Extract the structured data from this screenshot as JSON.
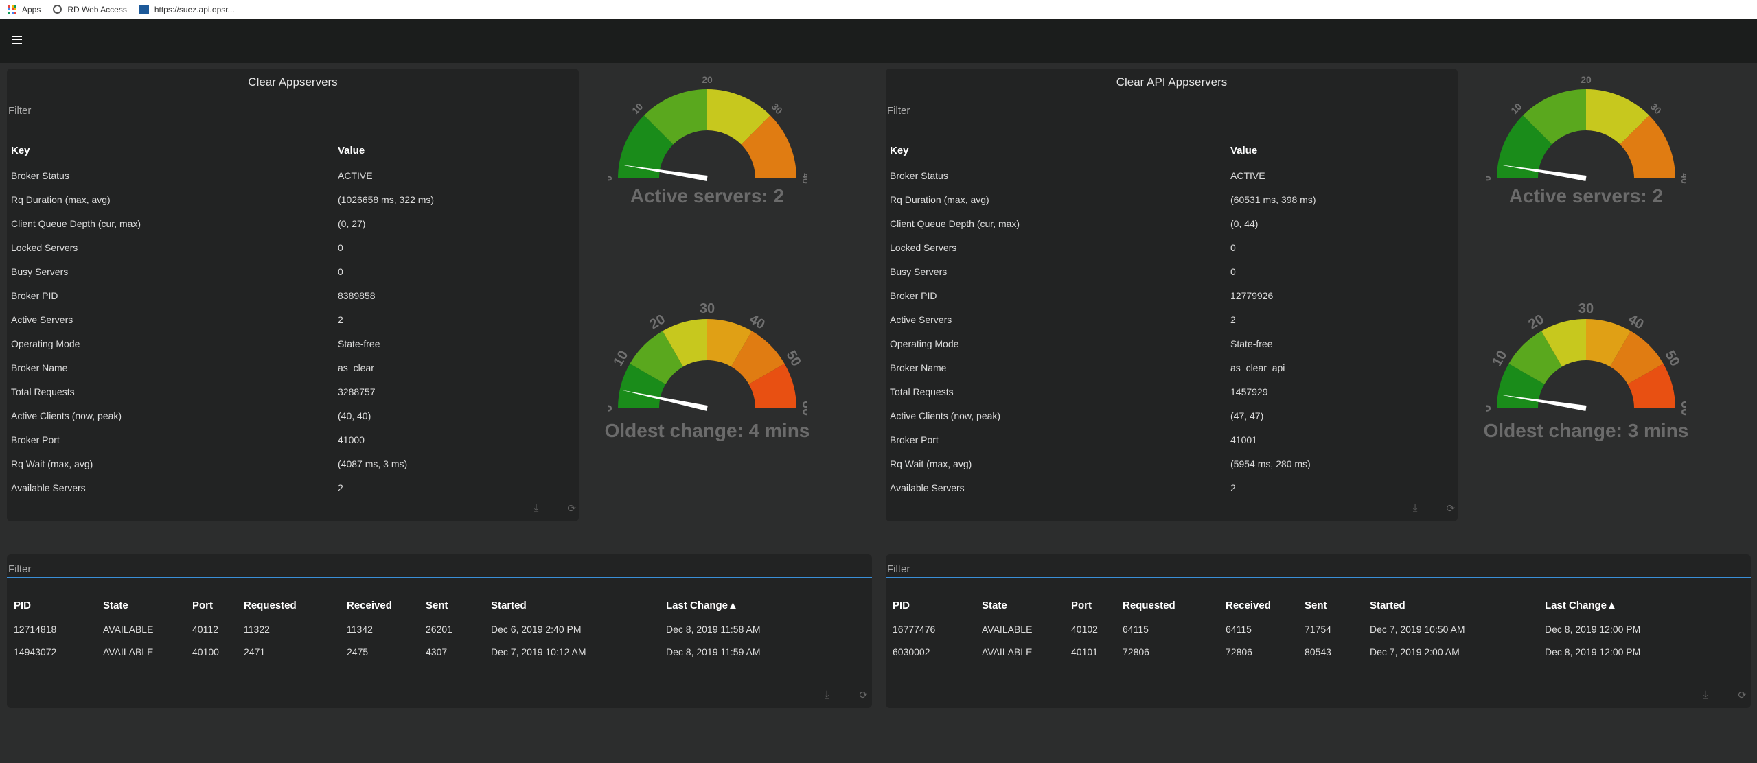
{
  "bookmarks": [
    {
      "label": "Apps",
      "icon": "apps-grid-icon"
    },
    {
      "label": "RD Web Access",
      "icon": "globe-icon"
    },
    {
      "label": "https://suez.api.opsr...",
      "icon": "site-favicon-icon"
    }
  ],
  "menu_icon": "hamburger-menu-icon",
  "left": {
    "title": "Clear Appservers",
    "filter_placeholder": "Filter",
    "headers": {
      "key": "Key",
      "value": "Value"
    },
    "rows": [
      [
        "Broker Status",
        "ACTIVE"
      ],
      [
        "Rq Duration (max, avg)",
        "(1026658 ms, 322 ms)"
      ],
      [
        "Client Queue Depth (cur, max)",
        "(0, 27)"
      ],
      [
        "Locked Servers",
        "0"
      ],
      [
        "Busy Servers",
        "0"
      ],
      [
        "Broker PID",
        "8389858"
      ],
      [
        "Active Servers",
        "2"
      ],
      [
        "Operating Mode",
        "State-free"
      ],
      [
        "Broker Name",
        "as_clear"
      ],
      [
        "Total Requests",
        "3288757"
      ],
      [
        "Active Clients (now, peak)",
        "(40, 40)"
      ],
      [
        "Broker Port",
        "41000"
      ],
      [
        "Rq Wait (max, avg)",
        "(4087 ms, 3 ms)"
      ],
      [
        "Available Servers",
        "2"
      ]
    ],
    "gauge_active": {
      "ticks": [
        "0",
        "10",
        "20",
        "30",
        "40"
      ],
      "max": 40,
      "value": 2,
      "label": "Active servers: 2"
    },
    "gauge_oldest": {
      "ticks": [
        "0",
        "10",
        "20",
        "30",
        "40",
        "50",
        "60"
      ],
      "max": 60,
      "value": 4,
      "label": "Oldest change: 4 mins"
    },
    "servers": {
      "filter_placeholder": "Filter",
      "headers": [
        "PID",
        "State",
        "Port",
        "Requested",
        "Received",
        "Sent",
        "Started",
        "Last Change▲"
      ],
      "rows": [
        [
          "12714818",
          "AVAILABLE",
          "40112",
          "11322",
          "11342",
          "26201",
          "Dec 6, 2019 2:40 PM",
          "Dec 8, 2019 11:58 AM"
        ],
        [
          "14943072",
          "AVAILABLE",
          "40100",
          "2471",
          "2475",
          "4307",
          "Dec 7, 2019 10:12 AM",
          "Dec 8, 2019 11:59 AM"
        ]
      ]
    }
  },
  "right": {
    "title": "Clear API Appservers",
    "filter_placeholder": "Filter",
    "headers": {
      "key": "Key",
      "value": "Value"
    },
    "rows": [
      [
        "Broker Status",
        "ACTIVE"
      ],
      [
        "Rq Duration (max, avg)",
        "(60531 ms, 398 ms)"
      ],
      [
        "Client Queue Depth (cur, max)",
        "(0, 44)"
      ],
      [
        "Locked Servers",
        "0"
      ],
      [
        "Busy Servers",
        "0"
      ],
      [
        "Broker PID",
        "12779926"
      ],
      [
        "Active Servers",
        "2"
      ],
      [
        "Operating Mode",
        "State-free"
      ],
      [
        "Broker Name",
        "as_clear_api"
      ],
      [
        "Total Requests",
        "1457929"
      ],
      [
        "Active Clients (now, peak)",
        "(47, 47)"
      ],
      [
        "Broker Port",
        "41001"
      ],
      [
        "Rq Wait (max, avg)",
        "(5954 ms, 280 ms)"
      ],
      [
        "Available Servers",
        "2"
      ]
    ],
    "gauge_active": {
      "ticks": [
        "0",
        "10",
        "20",
        "30",
        "40"
      ],
      "max": 40,
      "value": 2,
      "label": "Active servers: 2"
    },
    "gauge_oldest": {
      "ticks": [
        "0",
        "10",
        "20",
        "30",
        "40",
        "50",
        "60"
      ],
      "max": 60,
      "value": 3,
      "label": "Oldest change: 3 mins"
    },
    "servers": {
      "filter_placeholder": "Filter",
      "headers": [
        "PID",
        "State",
        "Port",
        "Requested",
        "Received",
        "Sent",
        "Started",
        "Last Change▲"
      ],
      "rows": [
        [
          "16777476",
          "AVAILABLE",
          "40102",
          "64115",
          "64115",
          "71754",
          "Dec 7, 2019 10:50 AM",
          "Dec 8, 2019 12:00 PM"
        ],
        [
          "6030002",
          "AVAILABLE",
          "40101",
          "72806",
          "72806",
          "80543",
          "Dec 7, 2019 2:00 AM",
          "Dec 8, 2019 12:00 PM"
        ]
      ]
    }
  },
  "footer_icons": {
    "download": "download-icon",
    "refresh": "refresh-icon"
  },
  "colors": {
    "gauge_segments": [
      "#1a8c1a",
      "#5aa81e",
      "#c7c81e",
      "#e0a015",
      "#e07c12",
      "#e85012"
    ],
    "needle": "#ffffff",
    "filter_underline": "#3a8fd8"
  }
}
